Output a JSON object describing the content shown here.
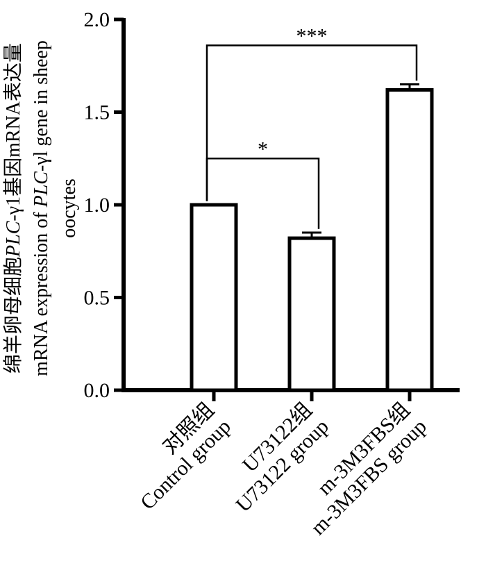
{
  "chart_data": {
    "type": "bar",
    "categories": [
      {
        "line1": "对照组",
        "line2": "Control group"
      },
      {
        "line1": "U73122组",
        "line2": "U73122 group"
      },
      {
        "line1": "m-3M3FBS组",
        "line2": "m-3M3FBS group"
      }
    ],
    "values": [
      1.0,
      0.82,
      1.62
    ],
    "errors": [
      0.0,
      0.03,
      0.03
    ],
    "ylabel_cn": {
      "pre": "绵羊卵母细胞",
      "italic": "PLC",
      "post": "-γ1基因mRNA表达量"
    },
    "ylabel_en": {
      "pre": "mRNA expression of ",
      "italic": "PLC",
      "post": "-γl gene in sheep",
      "line2": "oocytes"
    },
    "yticks": [
      "0.0",
      "0.5",
      "1.0",
      "1.5",
      "2.0"
    ],
    "ylim": [
      0,
      2.0
    ],
    "significance": [
      {
        "from": 0,
        "to": 1,
        "y": 1.25,
        "label": "*"
      },
      {
        "from": 0,
        "to": 2,
        "y": 1.86,
        "label": "***"
      }
    ],
    "grid": false,
    "legend": "none"
  }
}
